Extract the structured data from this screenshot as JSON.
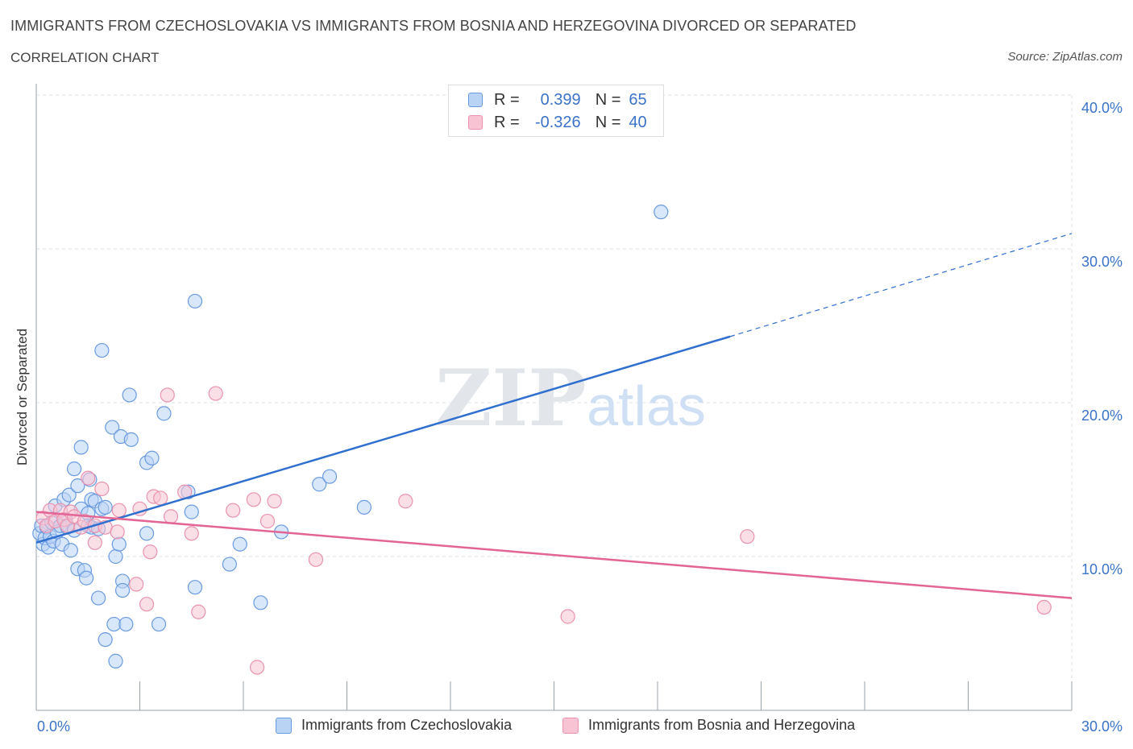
{
  "header": {
    "title": "IMMIGRANTS FROM CZECHOSLOVAKIA VS IMMIGRANTS FROM BOSNIA AND HERZEGOVINA DIVORCED OR SEPARATED",
    "subtitle": "CORRELATION CHART",
    "source": "Source: ZipAtlas.com"
  },
  "legend": {
    "series1": {
      "r_label": "R =",
      "r_value": "0.399",
      "n_label": "N =",
      "n_value": "65"
    },
    "series2": {
      "r_label": "R =",
      "r_value": "-0.326",
      "n_label": "N =",
      "n_value": "40"
    }
  },
  "colors": {
    "blue_fill": "#b9d3f5",
    "blue_stroke": "#6a9be0",
    "blue_line": "#2f6fcf",
    "pink_fill": "#f8c4d4",
    "pink_stroke": "#ea92ae",
    "pink_line": "#e36595",
    "tick_label": "#3a73c8",
    "grid": "#dde3ea"
  },
  "chart_data": {
    "type": "scatter",
    "title": "IMMIGRANTS FROM CZECHOSLOVAKIA VS IMMIGRANTS FROM BOSNIA AND HERZEGOVINA DIVORCED OR SEPARATED",
    "xlabel": "",
    "ylabel": "Divorced or Separated",
    "xlim": [
      0,
      30
    ],
    "ylim": [
      0,
      40
    ],
    "x_tick_labels": [
      "0.0%",
      "30.0%"
    ],
    "y_ticks": [
      10,
      20,
      30,
      40
    ],
    "y_tick_labels": [
      "10.0%",
      "20.0%",
      "30.0%",
      "40.0%"
    ],
    "grid": true,
    "legend_position": "top-center",
    "watermark": {
      "zip": "ZIP",
      "atlas": "atlas"
    },
    "series": [
      {
        "name": "Immigrants from Czechoslovakia",
        "color": "#6a9be0",
        "trend": {
          "x_start": 0,
          "y_start": 10.9,
          "x_solid_end": 20.1,
          "y_solid_end": 24.3,
          "x_end": 30,
          "y_end": 31.0
        },
        "points": [
          [
            0.1,
            11.5
          ],
          [
            0.15,
            12.0
          ],
          [
            0.2,
            10.8
          ],
          [
            0.25,
            11.2
          ],
          [
            0.3,
            11.9
          ],
          [
            0.35,
            10.6
          ],
          [
            0.4,
            11.3
          ],
          [
            0.45,
            12.2
          ],
          [
            0.5,
            11.0
          ],
          [
            0.55,
            13.3
          ],
          [
            0.6,
            11.6
          ],
          [
            0.7,
            12.0
          ],
          [
            0.75,
            10.8
          ],
          [
            0.8,
            13.7
          ],
          [
            0.85,
            12.4
          ],
          [
            0.9,
            11.9
          ],
          [
            0.95,
            14.0
          ],
          [
            1.0,
            10.4
          ],
          [
            1.1,
            11.7
          ],
          [
            1.2,
            9.2
          ],
          [
            1.1,
            15.7
          ],
          [
            1.2,
            14.6
          ],
          [
            1.3,
            17.1
          ],
          [
            1.3,
            13.1
          ],
          [
            1.4,
            9.1
          ],
          [
            1.45,
            8.6
          ],
          [
            1.5,
            12.8
          ],
          [
            1.5,
            12.0
          ],
          [
            1.55,
            15.0
          ],
          [
            1.6,
            11.9
          ],
          [
            1.6,
            13.7
          ],
          [
            1.7,
            13.6
          ],
          [
            1.8,
            11.8
          ],
          [
            1.8,
            7.3
          ],
          [
            1.9,
            23.4
          ],
          [
            1.9,
            13.1
          ],
          [
            2.0,
            13.2
          ],
          [
            2.0,
            4.6
          ],
          [
            2.2,
            18.4
          ],
          [
            2.25,
            5.6
          ],
          [
            2.3,
            3.2
          ],
          [
            2.3,
            10.0
          ],
          [
            2.4,
            10.8
          ],
          [
            2.45,
            17.8
          ],
          [
            2.5,
            8.4
          ],
          [
            2.5,
            7.8
          ],
          [
            2.6,
            5.6
          ],
          [
            2.7,
            20.5
          ],
          [
            2.75,
            17.6
          ],
          [
            3.2,
            16.1
          ],
          [
            3.2,
            11.5
          ],
          [
            3.35,
            16.4
          ],
          [
            3.55,
            5.6
          ],
          [
            3.7,
            19.3
          ],
          [
            4.4,
            14.2
          ],
          [
            4.5,
            12.9
          ],
          [
            4.6,
            26.6
          ],
          [
            4.6,
            8.0
          ],
          [
            5.6,
            9.5
          ],
          [
            5.9,
            10.8
          ],
          [
            6.5,
            7.0
          ],
          [
            7.1,
            11.6
          ],
          [
            8.2,
            14.7
          ],
          [
            8.5,
            15.2
          ],
          [
            9.5,
            13.2
          ],
          [
            18.1,
            32.4
          ]
        ]
      },
      {
        "name": "Immigrants from Bosnia and Herzegovina",
        "color": "#ea92ae",
        "trend": {
          "x_start": 0,
          "y_start": 12.9,
          "x_end": 30,
          "y_end": 7.3
        },
        "points": [
          [
            0.2,
            12.5
          ],
          [
            0.3,
            12.0
          ],
          [
            0.4,
            13.0
          ],
          [
            0.55,
            12.3
          ],
          [
            0.7,
            13.0
          ],
          [
            0.8,
            12.4
          ],
          [
            0.9,
            12.0
          ],
          [
            1.0,
            12.9
          ],
          [
            1.1,
            12.6
          ],
          [
            1.3,
            11.9
          ],
          [
            1.4,
            12.3
          ],
          [
            1.5,
            15.1
          ],
          [
            1.7,
            12.0
          ],
          [
            1.7,
            10.9
          ],
          [
            1.9,
            14.4
          ],
          [
            2.0,
            11.9
          ],
          [
            2.35,
            11.6
          ],
          [
            2.4,
            13.0
          ],
          [
            2.9,
            8.2
          ],
          [
            3.0,
            13.1
          ],
          [
            3.2,
            6.9
          ],
          [
            3.3,
            10.3
          ],
          [
            3.4,
            13.9
          ],
          [
            3.6,
            13.8
          ],
          [
            3.8,
            20.5
          ],
          [
            3.9,
            12.6
          ],
          [
            4.3,
            14.2
          ],
          [
            4.5,
            11.5
          ],
          [
            4.7,
            6.4
          ],
          [
            5.2,
            20.6
          ],
          [
            5.7,
            13.0
          ],
          [
            6.3,
            13.7
          ],
          [
            6.4,
            2.8
          ],
          [
            6.7,
            12.3
          ],
          [
            6.9,
            13.6
          ],
          [
            8.1,
            9.8
          ],
          [
            10.7,
            13.6
          ],
          [
            15.4,
            6.1
          ],
          [
            20.6,
            11.3
          ],
          [
            29.2,
            6.7
          ]
        ]
      }
    ]
  },
  "bottom_legend": {
    "item1": "Immigrants from Czechoslovakia",
    "item2": "Immigrants from Bosnia and Herzegovina"
  }
}
